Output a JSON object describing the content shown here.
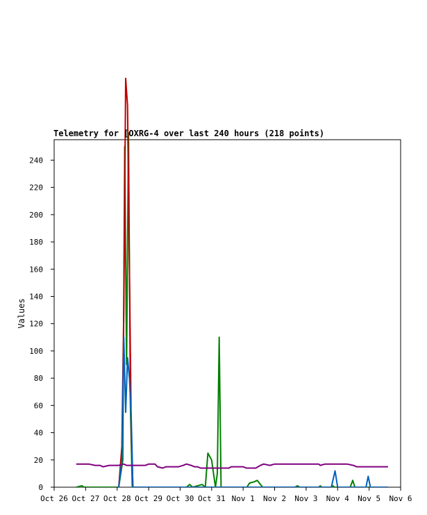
{
  "chart_data": {
    "type": "line",
    "title": "Telemetry for [OXRG-4 over last 240 hours (218 points)",
    "xlabel": "",
    "ylabel": "Values",
    "ylim": [
      0,
      255
    ],
    "xlim": [
      "Oct 26",
      "Nov 6"
    ],
    "x_ticks": [
      "Oct 26",
      "Oct 27",
      "Oct 28",
      "Oct 29",
      "Oct 30",
      "Oct 31",
      "Nov 1",
      "Nov 2",
      "Nov 3",
      "Nov 4",
      "Nov 5",
      "Nov 6"
    ],
    "y_ticks": [
      0,
      20,
      40,
      60,
      80,
      100,
      120,
      140,
      160,
      180,
      200,
      220,
      240
    ],
    "grid": false,
    "legend": "none",
    "series": [
      {
        "color": "#808080",
        "points": [
          [
            0.7,
            0
          ],
          [
            10.6,
            0
          ]
        ]
      },
      {
        "color": "#008000",
        "points": [
          [
            0.7,
            0
          ],
          [
            0.88,
            1
          ],
          [
            0.95,
            0
          ],
          [
            2.05,
            0
          ],
          [
            2.18,
            20
          ],
          [
            2.24,
            250
          ],
          [
            2.3,
            90
          ],
          [
            2.36,
            260
          ],
          [
            2.42,
            60
          ],
          [
            2.48,
            0
          ],
          [
            4.2,
            0
          ],
          [
            4.3,
            2
          ],
          [
            4.4,
            0
          ],
          [
            4.7,
            2
          ],
          [
            4.8,
            0
          ],
          [
            4.88,
            25
          ],
          [
            5.0,
            20
          ],
          [
            5.12,
            0
          ],
          [
            5.18,
            10
          ],
          [
            5.24,
            110
          ],
          [
            5.3,
            0
          ],
          [
            6.12,
            0
          ],
          [
            6.2,
            3
          ],
          [
            6.35,
            4
          ],
          [
            6.45,
            5
          ],
          [
            6.55,
            2
          ],
          [
            6.62,
            0
          ],
          [
            7.65,
            0
          ],
          [
            7.72,
            1
          ],
          [
            7.8,
            0
          ],
          [
            8.4,
            0
          ],
          [
            8.45,
            1
          ],
          [
            8.5,
            0
          ],
          [
            8.8,
            0
          ],
          [
            8.85,
            1
          ],
          [
            8.9,
            0
          ],
          [
            9.4,
            0
          ],
          [
            9.48,
            5
          ],
          [
            9.55,
            0
          ],
          [
            10.6,
            0
          ]
        ]
      },
      {
        "color": "#c00000",
        "points": [
          [
            2.05,
            0
          ],
          [
            2.15,
            30
          ],
          [
            2.21,
            130
          ],
          [
            2.27,
            300
          ],
          [
            2.33,
            280
          ],
          [
            2.39,
            160
          ],
          [
            2.45,
            40
          ],
          [
            2.5,
            0
          ]
        ]
      },
      {
        "color": "#0060c0",
        "points": [
          [
            2.05,
            0
          ],
          [
            2.15,
            20
          ],
          [
            2.21,
            110
          ],
          [
            2.27,
            55
          ],
          [
            2.33,
            95
          ],
          [
            2.39,
            80
          ],
          [
            2.45,
            50
          ],
          [
            2.5,
            0
          ],
          [
            8.8,
            0
          ],
          [
            8.92,
            12
          ],
          [
            9.0,
            0
          ],
          [
            9.9,
            0
          ],
          [
            9.97,
            8
          ],
          [
            10.04,
            0
          ],
          [
            10.6,
            0
          ]
        ]
      },
      {
        "color": "#800080",
        "points": [
          [
            0.7,
            17
          ],
          [
            1.1,
            17
          ],
          [
            1.3,
            16
          ],
          [
            1.45,
            16
          ],
          [
            1.55,
            15
          ],
          [
            1.75,
            16
          ],
          [
            2.05,
            16
          ],
          [
            2.2,
            17
          ],
          [
            2.3,
            16
          ],
          [
            2.9,
            16
          ],
          [
            3.0,
            17
          ],
          [
            3.2,
            17
          ],
          [
            3.28,
            15
          ],
          [
            3.45,
            14
          ],
          [
            3.55,
            15
          ],
          [
            3.95,
            15
          ],
          [
            4.1,
            16
          ],
          [
            4.2,
            17
          ],
          [
            4.35,
            16
          ],
          [
            4.45,
            15
          ],
          [
            4.55,
            15
          ],
          [
            4.65,
            14
          ],
          [
            5.55,
            14
          ],
          [
            5.62,
            15
          ],
          [
            6.0,
            15
          ],
          [
            6.1,
            14
          ],
          [
            6.4,
            14
          ],
          [
            6.55,
            16
          ],
          [
            6.65,
            17
          ],
          [
            6.85,
            16
          ],
          [
            7.0,
            17
          ],
          [
            8.4,
            17
          ],
          [
            8.45,
            16
          ],
          [
            8.6,
            17
          ],
          [
            9.3,
            17
          ],
          [
            9.5,
            16
          ],
          [
            9.6,
            15
          ],
          [
            10.6,
            15
          ]
        ]
      }
    ]
  }
}
